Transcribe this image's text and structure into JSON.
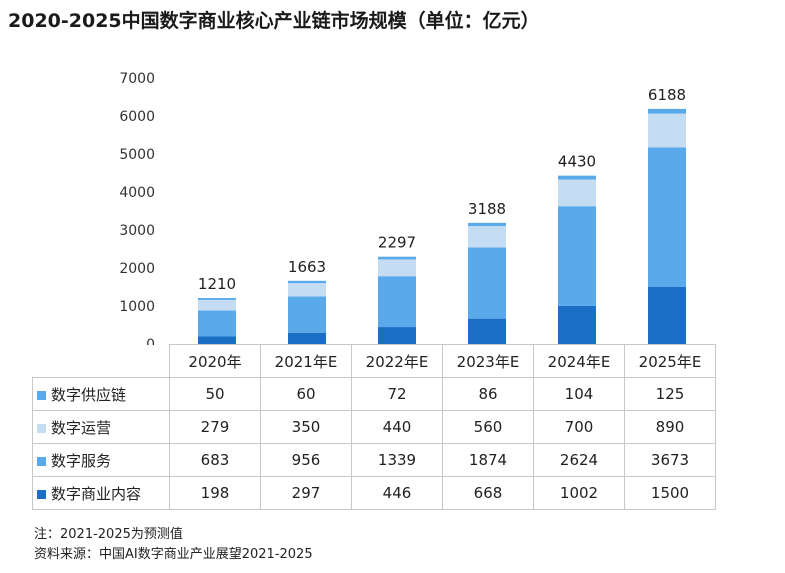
{
  "chart_data": {
    "type": "bar",
    "stacked": true,
    "title": "2020-2025中国数字商业核心产业链市场规模（单位：亿元）",
    "categories": [
      "2020年",
      "2021年E",
      "2022年E",
      "2023年E",
      "2024年E",
      "2025年E"
    ],
    "series": [
      {
        "name": "数字商业内容",
        "color": "#1a6fc4",
        "values": [
          198,
          297,
          446,
          668,
          1002,
          1500
        ]
      },
      {
        "name": "数字服务",
        "color": "#5aa9ea",
        "values": [
          683,
          956,
          1339,
          1874,
          2624,
          3673
        ]
      },
      {
        "name": "数字运营",
        "color": "#c5ddf3",
        "values": [
          279,
          350,
          440,
          560,
          700,
          890
        ]
      },
      {
        "name": "数字供应链",
        "color": "#5aa9ea",
        "values": [
          50,
          60,
          72,
          86,
          104,
          125
        ]
      }
    ],
    "totals": [
      1210,
      1663,
      2297,
      3188,
      4430,
      6188
    ],
    "yticks": [
      0,
      1000,
      2000,
      3000,
      4000,
      5000,
      6000,
      7000
    ],
    "ylim": [
      0,
      7000
    ],
    "table_row_order": [
      "数字供应链",
      "数字运营",
      "数字服务",
      "数字商业内容"
    ]
  },
  "notes": {
    "note": "注：2021-2025为预测值",
    "source": "资料来源：中国AI数字商业产业展望2021-2025"
  }
}
